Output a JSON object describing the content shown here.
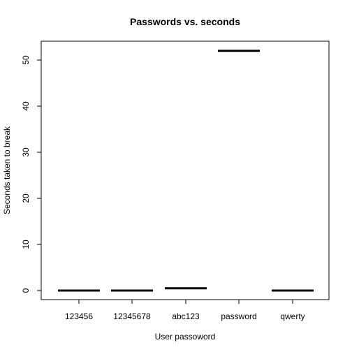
{
  "chart_data": {
    "type": "bar",
    "title": "Passwords vs. seconds",
    "xlabel": "User passoword",
    "ylabel": "Seconds taken to break",
    "categories": [
      "123456",
      "12345678",
      "abc123",
      "password",
      "qwerty"
    ],
    "values": [
      0,
      0,
      0.5,
      52,
      0
    ],
    "ylim": [
      -1.5,
      54
    ],
    "yticks": [
      0,
      10,
      20,
      30,
      40,
      50
    ],
    "grid": false,
    "legend": "none",
    "mark_style": "horizontal median line (boxplot of single values)",
    "color": "#000000"
  }
}
